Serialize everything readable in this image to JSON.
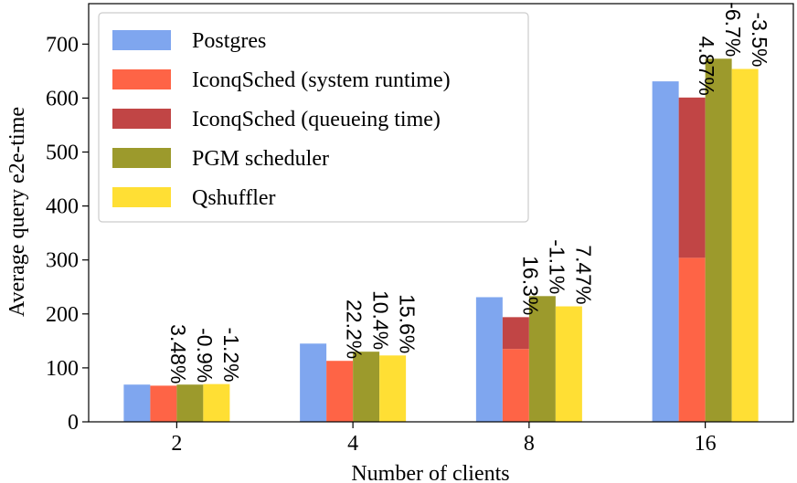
{
  "chart_data": {
    "type": "bar",
    "categories": [
      "2",
      "4",
      "8",
      "16"
    ],
    "xlabel": "Number of clients",
    "ylabel": "Average query e2e-time",
    "ylim": [
      0,
      775
    ],
    "yticks": [
      0,
      100,
      200,
      300,
      400,
      500,
      600,
      700
    ],
    "grid": false,
    "legend_position": "top-left",
    "series": [
      {
        "name": "Postgres",
        "color": "#7fa6ef",
        "values": [
          69,
          145,
          231,
          631
        ]
      },
      {
        "name": "IconqSched (system runtime)",
        "color": "#fe6446",
        "values": [
          67,
          113,
          135,
          304
        ]
      },
      {
        "name": "IconqSched (queueing time)",
        "color": "#c14545",
        "values": [
          0,
          0,
          59,
          297
        ]
      },
      {
        "name": "PGM scheduler",
        "color": "#9c9a2c",
        "values": [
          69,
          130,
          233,
          673
        ]
      },
      {
        "name": "Qshuffler",
        "color": "#ffdf34",
        "values": [
          70,
          123,
          214,
          654
        ]
      }
    ],
    "annotations": [
      {
        "category": "2",
        "bar": 1,
        "text": "3.48%"
      },
      {
        "category": "2",
        "bar": 3,
        "text": "-0.9%"
      },
      {
        "category": "2",
        "bar": 4,
        "text": "-1.2%"
      },
      {
        "category": "4",
        "bar": 1,
        "text": "22.2%"
      },
      {
        "category": "4",
        "bar": 3,
        "text": "10.4%"
      },
      {
        "category": "4",
        "bar": 4,
        "text": "15.6%"
      },
      {
        "category": "8",
        "bar": 1,
        "text": "16.3%"
      },
      {
        "category": "8",
        "bar": 3,
        "text": "-1.1%"
      },
      {
        "category": "8",
        "bar": 4,
        "text": "7.47%"
      },
      {
        "category": "16",
        "bar": 1,
        "text": "4.87%"
      },
      {
        "category": "16",
        "bar": 3,
        "text": "-6.7%"
      },
      {
        "category": "16",
        "bar": 4,
        "text": "-3.5%"
      }
    ]
  }
}
